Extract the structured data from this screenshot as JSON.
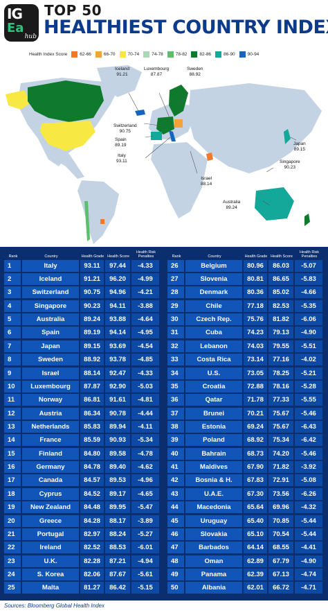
{
  "header": {
    "logo_line1": "IG",
    "logo_line2": "Ea",
    "logo_line3": "hub",
    "title_top": "TOP 50",
    "title_main": "HEALTHIEST COUNTRY INDEX"
  },
  "legend": {
    "title": "Health Index Score",
    "items": [
      {
        "label": "62-66",
        "color": "#f07a2c"
      },
      {
        "label": "66-70",
        "color": "#f5a23a"
      },
      {
        "label": "70-74",
        "color": "#f7e843"
      },
      {
        "label": "74-78",
        "color": "#a8d9b3"
      },
      {
        "label": "78-82",
        "color": "#5bbf6b"
      },
      {
        "label": "82-86",
        "color": "#0f7a2e"
      },
      {
        "label": "86-90",
        "color": "#14a89a"
      },
      {
        "label": "90-94",
        "color": "#1565c0"
      }
    ]
  },
  "map_labels": [
    {
      "name": "Iceland",
      "value": "91.21"
    },
    {
      "name": "Luxembourg",
      "value": "87.87"
    },
    {
      "name": "Sweden",
      "value": "88.92"
    },
    {
      "name": "Switzerland",
      "value": "90.75"
    },
    {
      "name": "Spain",
      "value": "89.19"
    },
    {
      "name": "Italy",
      "value": "93.11"
    },
    {
      "name": "Japan",
      "value": "89.15"
    },
    {
      "name": "Singapore",
      "value": "90.23"
    },
    {
      "name": "Israel",
      "value": "88.14"
    },
    {
      "name": "Australia",
      "value": "89.24"
    }
  ],
  "table": {
    "headers": {
      "rank": "Rank",
      "country": "Country",
      "grade": "Health Grade",
      "score": "Health Score",
      "penalty": "Health Risk Penalties"
    },
    "rows": [
      [
        "1",
        "Italy",
        "93.11",
        "97.44",
        "-4.33"
      ],
      [
        "2",
        "Iceland",
        "91.21",
        "96.20",
        "-4.99"
      ],
      [
        "3",
        "Switzerland",
        "90.75",
        "94.96",
        "-4.21"
      ],
      [
        "4",
        "Singapore",
        "90.23",
        "94.11",
        "-3.88"
      ],
      [
        "5",
        "Australia",
        "89.24",
        "93.88",
        "-4.64"
      ],
      [
        "6",
        "Spain",
        "89.19",
        "94.14",
        "-4.95"
      ],
      [
        "7",
        "Japan",
        "89.15",
        "93.69",
        "-4.54"
      ],
      [
        "8",
        "Sweden",
        "88.92",
        "93.78",
        "-4.85"
      ],
      [
        "9",
        "Israel",
        "88.14",
        "92.47",
        "-4.33"
      ],
      [
        "10",
        "Luxembourg",
        "87.87",
        "92.90",
        "-5.03"
      ],
      [
        "11",
        "Norway",
        "86.81",
        "91.61",
        "-4.81"
      ],
      [
        "12",
        "Austria",
        "86.34",
        "90.78",
        "-4.44"
      ],
      [
        "13",
        "Netherlands",
        "85.83",
        "89.94",
        "-4.11"
      ],
      [
        "14",
        "France",
        "85.59",
        "90.93",
        "-5.34"
      ],
      [
        "15",
        "Finland",
        "84.80",
        "89.58",
        "-4.78"
      ],
      [
        "16",
        "Germany",
        "84.78",
        "89.40",
        "-4.62"
      ],
      [
        "17",
        "Canada",
        "84.57",
        "89.53",
        "-4.96"
      ],
      [
        "18",
        "Cyprus",
        "84.52",
        "89.17",
        "-4.65"
      ],
      [
        "19",
        "New Zealand",
        "84.48",
        "89.95",
        "-5.47"
      ],
      [
        "20",
        "Greece",
        "84.28",
        "88.17",
        "-3.89"
      ],
      [
        "21",
        "Portugal",
        "82.97",
        "88.24",
        "-5.27"
      ],
      [
        "22",
        "Ireland",
        "82.52",
        "88.53",
        "-6.01"
      ],
      [
        "23",
        "U.K.",
        "82.28",
        "87.21",
        "-4.94"
      ],
      [
        "24",
        "S. Korea",
        "82.06",
        "87.67",
        "-5.61"
      ],
      [
        "25",
        "Malta",
        "81.27",
        "86.42",
        "-5.15"
      ],
      [
        "26",
        "Belgium",
        "80.96",
        "86.03",
        "-5.07"
      ],
      [
        "27",
        "Slovenia",
        "80.81",
        "86.65",
        "-5.83"
      ],
      [
        "28",
        "Denmark",
        "80.36",
        "85.02",
        "-4.66"
      ],
      [
        "29",
        "Chile",
        "77.18",
        "82.53",
        "-5.35"
      ],
      [
        "30",
        "Czech Rep.",
        "75.76",
        "81.82",
        "-6.06"
      ],
      [
        "31",
        "Cuba",
        "74.23",
        "79.13",
        "-4.90"
      ],
      [
        "32",
        "Lebanon",
        "74.03",
        "79.55",
        "-5.51"
      ],
      [
        "33",
        "Costa Rica",
        "73.14",
        "77.16",
        "-4.02"
      ],
      [
        "34",
        "U.S.",
        "73.05",
        "78.25",
        "-5.21"
      ],
      [
        "35",
        "Croatia",
        "72.88",
        "78.16",
        "-5.28"
      ],
      [
        "36",
        "Qatar",
        "71.78",
        "77.33",
        "-5.55"
      ],
      [
        "37",
        "Brunei",
        "70.21",
        "75.67",
        "-5.46"
      ],
      [
        "38",
        "Estonia",
        "69.24",
        "75.67",
        "-6.43"
      ],
      [
        "39",
        "Poland",
        "68.92",
        "75.34",
        "-6.42"
      ],
      [
        "40",
        "Bahrain",
        "68.73",
        "74.20",
        "-5.46"
      ],
      [
        "41",
        "Maldives",
        "67.90",
        "71.82",
        "-3.92"
      ],
      [
        "42",
        "Bosnia & H.",
        "67.83",
        "72.91",
        "-5.08"
      ],
      [
        "43",
        "U.A.E.",
        "67.30",
        "73.56",
        "-6.26"
      ],
      [
        "44",
        "Macedonia",
        "65.64",
        "69.96",
        "-4.32"
      ],
      [
        "45",
        "Uruguay",
        "65.40",
        "70.85",
        "-5.44"
      ],
      [
        "46",
        "Slovakia",
        "65.10",
        "70.54",
        "-5.44"
      ],
      [
        "47",
        "Barbados",
        "64.14",
        "68.55",
        "-4.41"
      ],
      [
        "48",
        "Oman",
        "62.89",
        "67.79",
        "-4.90"
      ],
      [
        "49",
        "Panama",
        "62.39",
        "67.13",
        "-4.74"
      ],
      [
        "50",
        "Albania",
        "62.01",
        "66.72",
        "-4.71"
      ]
    ]
  },
  "footer": {
    "source": "Sources: Bloomberg Global Health Index"
  }
}
